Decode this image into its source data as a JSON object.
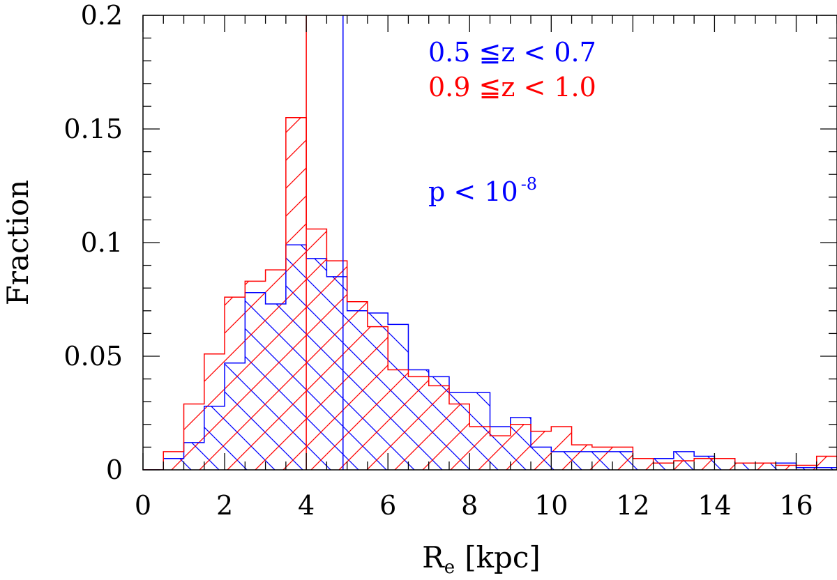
{
  "chart_data": {
    "type": "histogram",
    "xlabel": "R",
    "xlabel_subscript": "e",
    "xlabel_unit": "[kpc]",
    "ylabel": "Fraction",
    "xlim": [
      0,
      17
    ],
    "ylim": [
      0,
      0.2
    ],
    "x_ticks": [
      0,
      2,
      4,
      6,
      8,
      10,
      12,
      14,
      16
    ],
    "x_tick_labels": [
      "0",
      "2",
      "4",
      "6",
      "8",
      "10",
      "12",
      "14",
      "16"
    ],
    "y_ticks": [
      0,
      0.05,
      0.1,
      0.15,
      0.2
    ],
    "y_tick_labels": [
      "0",
      "0.05",
      "0.1",
      "0.15",
      "0.2"
    ],
    "bin_width": 0.5,
    "bin_start": 0,
    "series": [
      {
        "name": "0.5 ≦z < 0.7",
        "color": "#0000ff",
        "hatch": "backslash",
        "median": 4.9,
        "values": [
          0,
          0.005,
          0.012,
          0.028,
          0.047,
          0.078,
          0.073,
          0.099,
          0.093,
          0.085,
          0.07,
          0.069,
          0.064,
          0.044,
          0.041,
          0.034,
          0.034,
          0.019,
          0.023,
          0.01,
          0.008,
          0.008,
          0.008,
          0.008,
          0.005,
          0.005,
          0.008,
          0.006,
          0.005,
          0.003,
          0.003,
          0.003,
          0.001,
          0.001,
          0.001
        ]
      },
      {
        "name": "0.9 ≦z < 1.0",
        "color": "#ff0000",
        "hatch": "slash",
        "median": 4.0,
        "values": [
          0,
          0.008,
          0.029,
          0.051,
          0.076,
          0.083,
          0.088,
          0.155,
          0.106,
          0.092,
          0.074,
          0.063,
          0.044,
          0.041,
          0.037,
          0.029,
          0.019,
          0.015,
          0.02,
          0.017,
          0.019,
          0.011,
          0.01,
          0.01,
          0.005,
          0.003,
          0.004,
          0.005,
          0.005,
          0.003,
          0.003,
          0.002,
          0.002,
          0.006,
          0.002
        ]
      }
    ],
    "annotation": {
      "text": "p < 10",
      "superscript": "-8",
      "color": "#0000ff"
    }
  }
}
